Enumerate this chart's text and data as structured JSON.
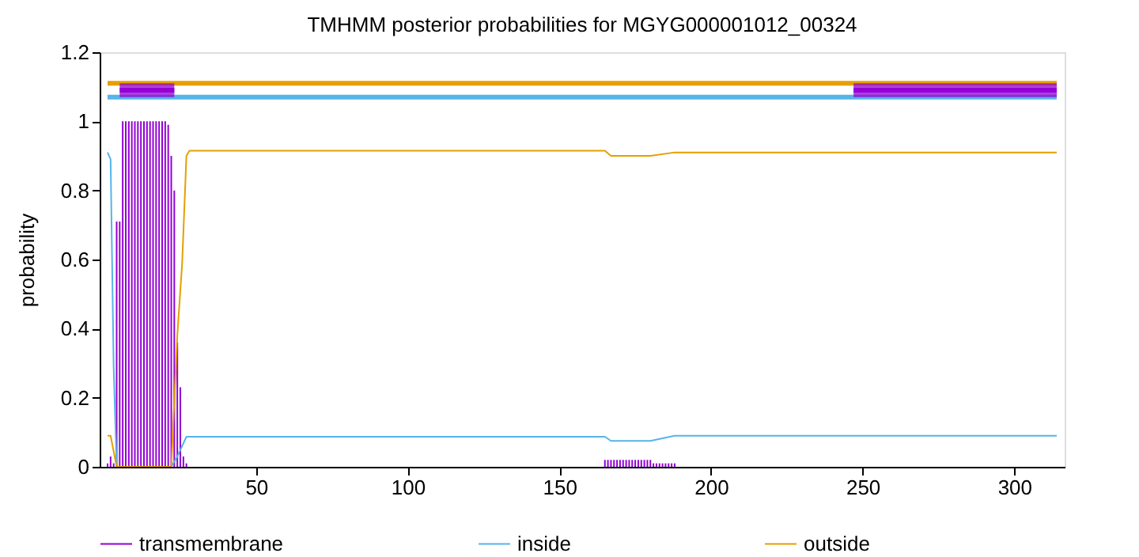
{
  "chart_data": {
    "type": "line",
    "title": "TMHMM posterior probabilities for MGYG000001012_00324",
    "ylabel": "probability",
    "xlim": [
      1,
      314
    ],
    "xticks": [
      50,
      100,
      150,
      200,
      250,
      300
    ],
    "ylim": [
      0,
      1.2
    ],
    "yticks": [
      {
        "value": 0,
        "label": "0"
      },
      0.2,
      0.4,
      0.6,
      0.8,
      {
        "value": 1,
        "label": "1"
      },
      1.2
    ],
    "grid": false,
    "legend": "bottom",
    "series": [
      {
        "name": "transmembrane",
        "type": "bar",
        "color": "#9400d3",
        "x": [
          1,
          2,
          3,
          4,
          5,
          6,
          7,
          8,
          9,
          10,
          11,
          12,
          13,
          14,
          15,
          16,
          17,
          18,
          19,
          20,
          21,
          22,
          23,
          24,
          25,
          26,
          27,
          165,
          166,
          167,
          168,
          169,
          170,
          171,
          172,
          173,
          174,
          175,
          176,
          177,
          178,
          179,
          180,
          181,
          182,
          183,
          184,
          185,
          186,
          187,
          188
        ],
        "values": [
          0.01,
          0.03,
          0.01,
          0.71,
          0.71,
          1,
          1,
          1,
          1,
          1,
          1,
          1,
          1,
          1,
          1,
          1,
          1,
          1,
          1,
          1,
          0.99,
          0.9,
          0.8,
          0.36,
          0.23,
          0.03,
          0.01,
          0.02,
          0.02,
          0.02,
          0.02,
          0.02,
          0.02,
          0.02,
          0.02,
          0.02,
          0.02,
          0.02,
          0.02,
          0.02,
          0.02,
          0.02,
          0.02,
          0.01,
          0.01,
          0.01,
          0.01,
          0.01,
          0.01,
          0.01,
          0.01
        ]
      },
      {
        "name": "inside",
        "color": "#56b4e9",
        "x": [
          1,
          2,
          3,
          4,
          22,
          24,
          27,
          165,
          167,
          180,
          188,
          314
        ],
        "values": [
          0.91,
          0.89,
          0.29,
          0,
          0,
          0.03,
          0.087,
          0.087,
          0.075,
          0.075,
          0.09,
          0.09
        ]
      },
      {
        "name": "outside",
        "color": "#e69f00",
        "x": [
          1,
          2,
          4,
          22,
          24,
          25.6,
          27,
          28,
          165,
          167,
          180,
          188,
          314
        ],
        "values": [
          0.09,
          0.09,
          0,
          0,
          0.38,
          0.59,
          0.9,
          0.915,
          0.915,
          0.9,
          0.9,
          0.91,
          0.91
        ]
      },
      {
        "type": "line",
        "color": "#e69f00",
        "x": [
          1,
          314
        ],
        "values": [
          1.11,
          1.11
        ]
      },
      {
        "type": "line",
        "color": "#56b4e9",
        "x": [
          1,
          314
        ],
        "values": [
          1.07,
          1.07
        ]
      },
      {
        "type": "line",
        "color": "#9400d3",
        "x": [
          5,
          23
        ],
        "values": [
          1.09,
          1.09
        ],
        "lower": [
          1.07,
          1.07
        ],
        "upper": [
          1.11,
          1.11
        ]
      },
      {
        "type": "line",
        "color": "#9400d3",
        "x": [
          247,
          314
        ],
        "values": [
          1.09,
          1.09
        ],
        "lower": [
          1.07,
          1.07
        ],
        "upper": [
          1.11,
          1.11
        ]
      }
    ]
  }
}
